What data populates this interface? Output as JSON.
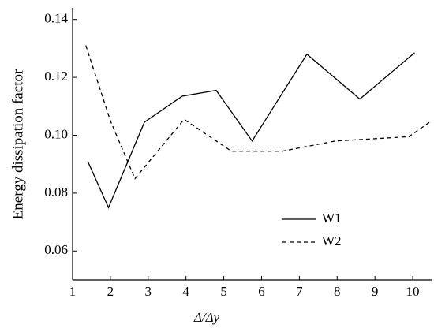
{
  "chart_data": {
    "type": "line",
    "x_label": "Δ/Δy",
    "y_label": "Energy dissipation factor",
    "xlim": [
      1,
      10.5
    ],
    "xticks": [
      1,
      2,
      3,
      4,
      5,
      6,
      7,
      8,
      9,
      10
    ],
    "ylim": [
      0.05,
      0.144
    ],
    "yticks": [
      {
        "value": 0.06,
        "label": "0.06"
      },
      {
        "value": 0.08,
        "label": "0.08"
      },
      {
        "value": 0.1,
        "label": "0.10"
      },
      {
        "value": 0.12,
        "label": "0.12"
      },
      {
        "value": 0.14,
        "label": "0.14"
      }
    ],
    "legend": "lower right",
    "series": [
      {
        "name": "W1",
        "color": "#000000",
        "dash": "solid",
        "x": [
          1.4,
          1.95,
          2.9,
          3.9,
          4.8,
          5.75,
          7.2,
          8.6,
          10.05
        ],
        "values": [
          0.091,
          0.075,
          0.1045,
          0.1135,
          0.1155,
          0.098,
          0.128,
          0.1125,
          0.1285
        ]
      },
      {
        "name": "W2",
        "color": "#000000",
        "dash": "dashed",
        "x": [
          1.35,
          2.0,
          2.65,
          3.95,
          5.2,
          6.55,
          7.95,
          9.9,
          10.5
        ],
        "values": [
          0.131,
          0.105,
          0.085,
          0.1055,
          0.0945,
          0.0945,
          0.098,
          0.0995,
          0.105
        ]
      }
    ]
  }
}
